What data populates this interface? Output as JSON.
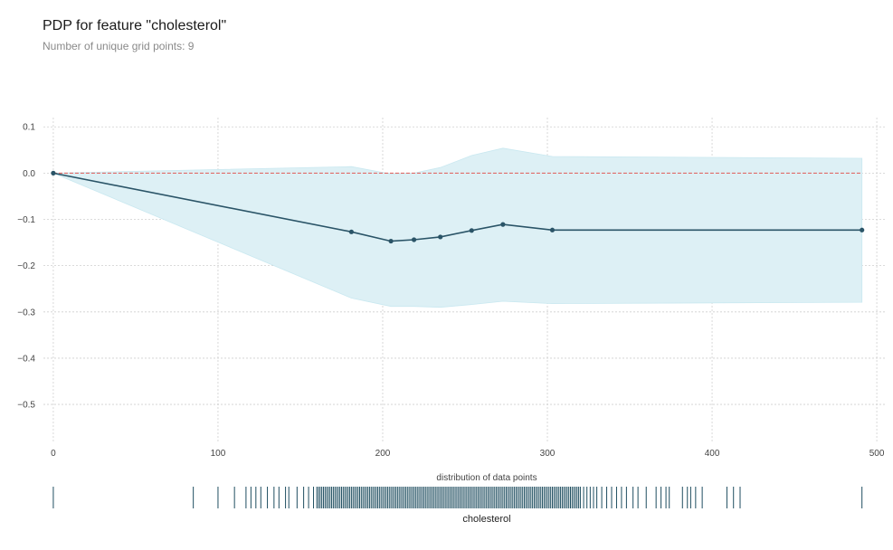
{
  "chart_data": {
    "type": "line",
    "title": "PDP for feature \"cholesterol\"",
    "subtitle": "Number of unique grid points: 9",
    "xlabel": "cholesterol",
    "ylabel": "",
    "distribution_label": "distribution of data points",
    "xlim": [
      -6,
      506
    ],
    "ylim": [
      -0.58,
      0.12
    ],
    "xticks": [
      0,
      100,
      200,
      300,
      400,
      500
    ],
    "yticks": [
      0.1,
      0.0,
      -0.1,
      -0.2,
      -0.3,
      -0.4,
      -0.5
    ],
    "grid": true,
    "series": [
      {
        "x": [
          0,
          181,
          205,
          219,
          235,
          254,
          273,
          303,
          491
        ],
        "values": [
          0.0,
          -0.127,
          -0.147,
          -0.144,
          -0.138,
          -0.124,
          -0.111,
          -0.123,
          -0.123
        ],
        "upper": [
          0.0,
          0.014,
          -0.002,
          0.0,
          0.012,
          0.038,
          0.054,
          0.036,
          0.032
        ],
        "lower": [
          0.0,
          -0.27,
          -0.288,
          -0.288,
          -0.29,
          -0.284,
          -0.277,
          -0.282,
          -0.279
        ]
      }
    ],
    "reference_line": 0.0,
    "data_points": [
      0,
      85,
      100,
      110,
      117,
      120,
      123,
      126,
      130,
      134,
      137,
      141,
      143,
      148,
      152,
      155,
      158,
      160,
      161,
      162,
      163,
      164,
      165,
      166,
      167,
      168,
      169,
      170,
      171,
      172,
      173,
      174,
      175,
      176,
      177,
      178,
      179,
      180,
      181,
      182,
      183,
      184,
      185,
      186,
      187,
      188,
      189,
      190,
      191,
      192,
      193,
      194,
      195,
      196,
      197,
      198,
      199,
      200,
      201,
      202,
      203,
      204,
      205,
      206,
      207,
      208,
      209,
      210,
      211,
      212,
      213,
      214,
      215,
      216,
      217,
      218,
      219,
      220,
      221,
      222,
      223,
      224,
      225,
      226,
      227,
      228,
      229,
      230,
      231,
      232,
      233,
      234,
      235,
      236,
      237,
      238,
      239,
      240,
      241,
      242,
      243,
      244,
      245,
      246,
      247,
      248,
      249,
      250,
      251,
      252,
      253,
      254,
      255,
      256,
      257,
      258,
      259,
      260,
      261,
      262,
      263,
      264,
      265,
      266,
      267,
      268,
      269,
      270,
      271,
      272,
      273,
      274,
      275,
      276,
      277,
      278,
      279,
      280,
      281,
      282,
      283,
      284,
      285,
      286,
      287,
      288,
      289,
      290,
      291,
      292,
      293,
      294,
      295,
      296,
      297,
      298,
      299,
      300,
      301,
      302,
      303,
      304,
      305,
      306,
      307,
      308,
      309,
      310,
      311,
      312,
      313,
      314,
      315,
      316,
      317,
      318,
      319,
      320,
      322,
      324,
      326,
      328,
      330,
      333,
      336,
      339,
      342,
      345,
      348,
      352,
      355,
      360,
      366,
      369,
      372,
      374,
      382,
      385,
      387,
      390,
      394,
      409,
      413,
      417,
      491
    ],
    "colors": {
      "line": "#2a5467",
      "band": "#ddf0f5",
      "band_edge": "#c9e8f0",
      "zero_line": "#e05a56",
      "rug": "#1f4e60",
      "grid": "#cfcfcf"
    }
  }
}
